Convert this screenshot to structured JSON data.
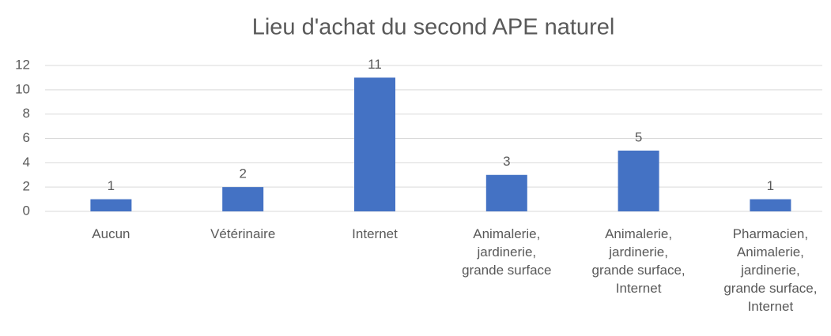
{
  "chart_data": {
    "type": "bar",
    "title": "Lieu d'achat du second APE naturel",
    "categories": [
      "Aucun",
      "Vétérinaire",
      "Internet",
      "Animalerie, jardinerie, grande surface",
      "Animalerie, jardinerie, grande surface, Internet",
      "Pharmacien, Animalerie, jardinerie, grande surface, Internet"
    ],
    "values": [
      1,
      2,
      11,
      3,
      5,
      1
    ],
    "color": "#4472c4",
    "ylim": [
      0,
      12
    ],
    "yticks": [
      0,
      2,
      4,
      6,
      8,
      10,
      12
    ],
    "grid": true
  }
}
